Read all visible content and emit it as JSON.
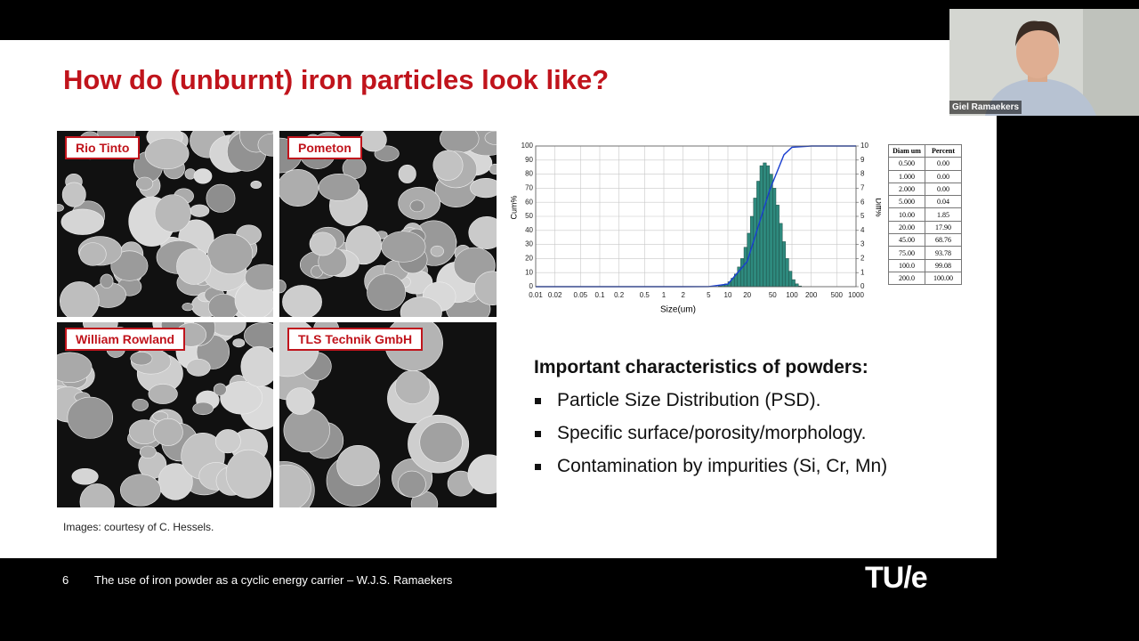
{
  "slide": {
    "title": "How do (unburnt) iron particles look like?",
    "images": [
      "Rio Tinto",
      "Pometon",
      "William Rowland",
      "TLS Technik GmbH"
    ],
    "caption": "Images: courtesy of C. Hessels.",
    "heading": "Important characteristics of powders:",
    "bullets": [
      "Particle Size Distribution (PSD).",
      "Specific surface/porosity/morphology.",
      "Contamination by impurities (Si, Cr, Mn)"
    ],
    "page_number": "6",
    "footer": "The use of iron powder as a cyclic energy carrier – W.J.S. Ramaekers",
    "logo": "TU/e"
  },
  "chart_data": {
    "type": "histogram",
    "x_label": "Size(um)",
    "y_label": "Cum%",
    "y2_label": "Diff%",
    "log_x": true,
    "grid": true,
    "xlim": [
      0.01,
      1000
    ],
    "xticks": [
      0.01,
      0.02,
      0.05,
      0.1,
      0.2,
      0.5,
      1,
      2,
      5,
      10,
      20,
      50,
      100,
      200,
      500,
      1000
    ],
    "ylim": [
      0,
      100
    ],
    "yticks": [
      0,
      10,
      20,
      30,
      40,
      50,
      60,
      70,
      80,
      90,
      100
    ],
    "y2lim": [
      0,
      10
    ],
    "y2ticks": [
      0,
      1,
      2,
      3,
      4,
      5,
      6,
      7,
      8,
      9,
      10
    ],
    "bins": [
      7.08,
      7.94,
      8.91,
      10,
      11.2,
      12.6,
      14.1,
      15.8,
      17.8,
      20,
      22.4,
      25.1,
      28.2,
      31.6,
      35.5,
      39.8,
      44.7,
      50.1,
      56.2,
      63.1,
      70.8,
      79.4,
      89.1,
      100,
      112,
      126,
      141
    ],
    "counts": [
      0.05,
      0.1,
      0.2,
      0.35,
      0.6,
      0.9,
      1.4,
      2.0,
      2.8,
      3.8,
      5.0,
      6.3,
      7.5,
      8.6,
      8.8,
      8.6,
      8.0,
      7.0,
      5.8,
      4.5,
      3.2,
      2.0,
      1.1,
      0.5,
      0.2,
      0.05
    ],
    "bar_color": "#2e8a7e",
    "axis_counts": "y2",
    "line": {
      "color": "#1a3fd0",
      "x": [
        0.01,
        0.5,
        1,
        2,
        5,
        10,
        20,
        45,
        75,
        100,
        200,
        1000
      ],
      "values": [
        0,
        0,
        0,
        0,
        0.04,
        1.85,
        17.9,
        68.76,
        93.78,
        99.08,
        100,
        100
      ]
    }
  },
  "table": {
    "header": [
      "Diam um",
      "Percent"
    ],
    "rows": [
      [
        "0.500",
        "0.00"
      ],
      [
        "1.000",
        "0.00"
      ],
      [
        "2.000",
        "0.00"
      ],
      [
        "5.000",
        "0.04"
      ],
      [
        "10.00",
        "1.85"
      ],
      [
        "20.00",
        "17.90"
      ],
      [
        "45.00",
        "68.76"
      ],
      [
        "75.00",
        "93.78"
      ],
      [
        "100.0",
        "99.08"
      ],
      [
        "200.0",
        "100.00"
      ]
    ]
  },
  "participant": {
    "name": "Giel Ramaekers"
  }
}
